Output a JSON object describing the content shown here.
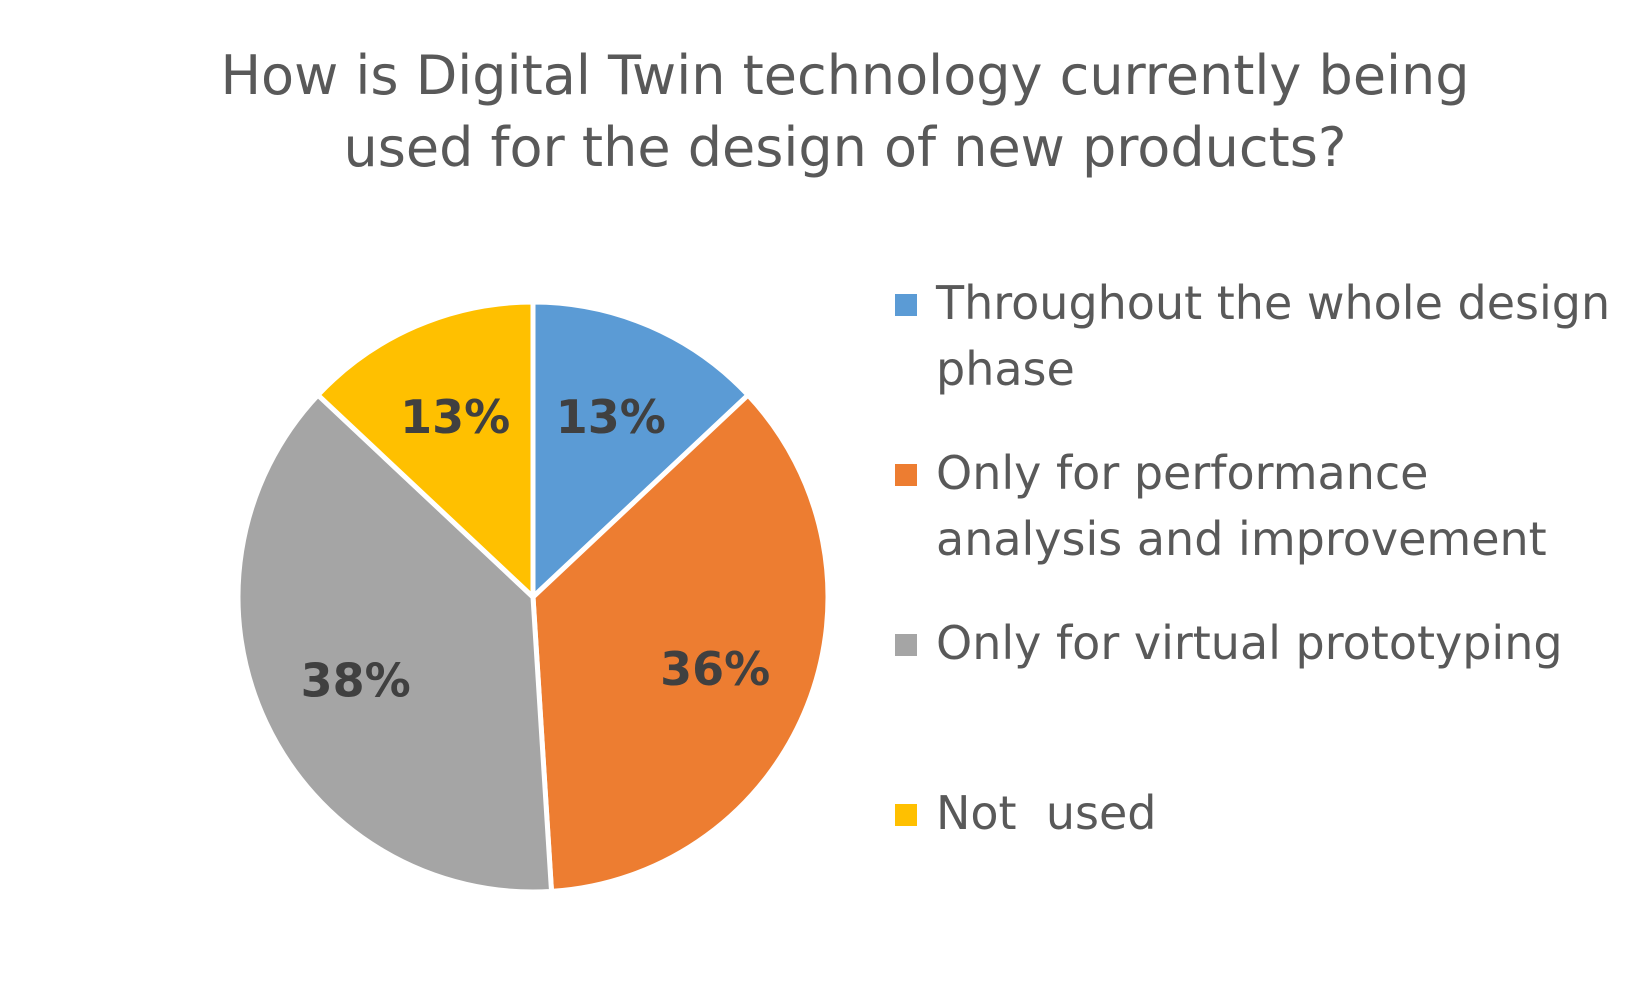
{
  "chart_data": {
    "type": "pie",
    "title_lines": [
      "How is Digital Twin technology currently being",
      "used for the design of new products?"
    ],
    "slices": [
      {
        "label": "Throughout the whole design phase",
        "value": 13,
        "display": "13%",
        "color": "#5B9BD5"
      },
      {
        "label": "Only for performance analysis and improvement",
        "value": 36,
        "display": "36%",
        "color": "#ED7D31"
      },
      {
        "label": "Only for virtual prototyping",
        "value": 38,
        "display": "38%",
        "color": "#A5A5A5"
      },
      {
        "label": "Not  used",
        "value": 13,
        "display": "13%",
        "color": "#FFC000"
      }
    ],
    "legend_position": "right",
    "start_angle": "12 o'clock",
    "direction": "clockwise"
  }
}
